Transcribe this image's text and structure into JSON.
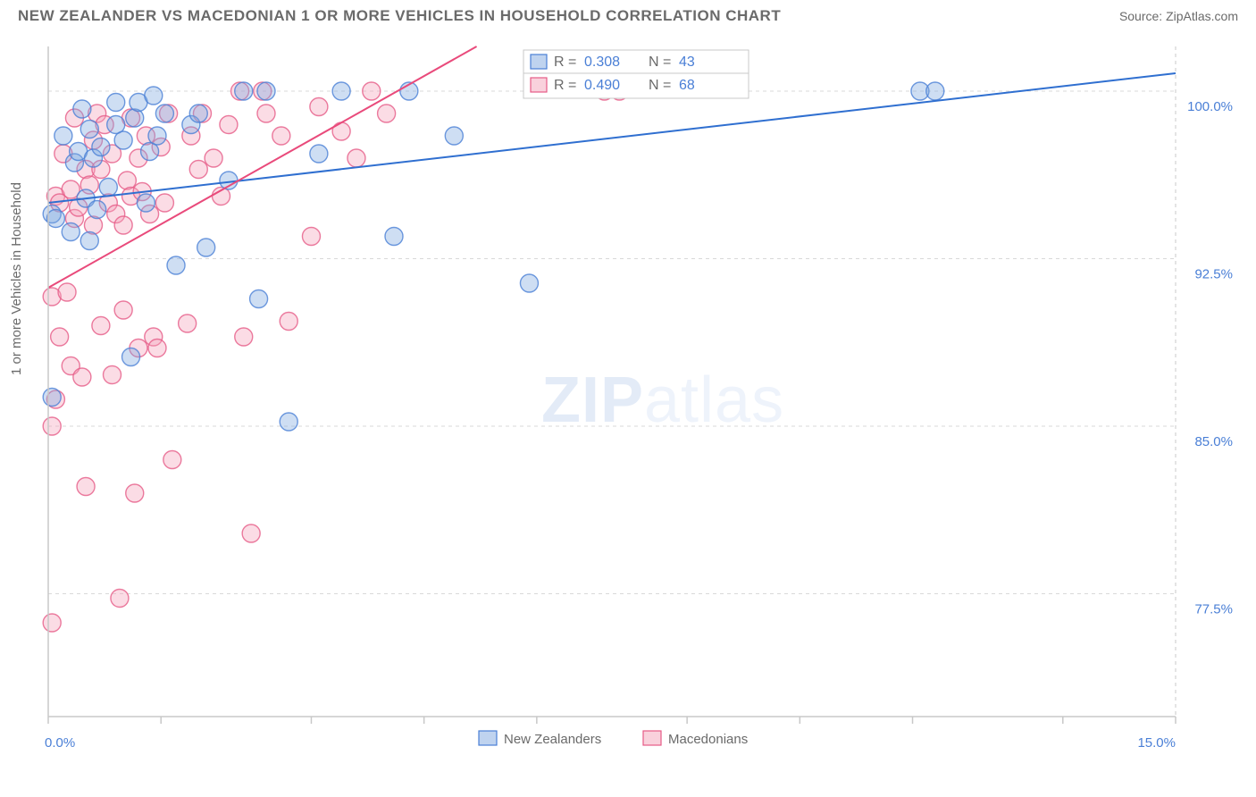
{
  "title": "NEW ZEALANDER VS MACEDONIAN 1 OR MORE VEHICLES IN HOUSEHOLD CORRELATION CHART",
  "source": "Source: ZipAtlas.com",
  "y_axis_label": "1 or more Vehicles in Household",
  "watermark_a": "ZIP",
  "watermark_b": "atlas",
  "chart": {
    "type": "scatter",
    "xlim": [
      0.0,
      15.0
    ],
    "ylim": [
      72.0,
      102.0
    ],
    "x_tick_positions": [
      0.0,
      1.5,
      3.5,
      5.0,
      6.5,
      8.5,
      10.0,
      11.5,
      13.5,
      15.0
    ],
    "x_tick_labels_shown": {
      "0.0": "0.0%",
      "15.0": "15.0%"
    },
    "y_grid": [
      77.5,
      85.0,
      92.5,
      100.0
    ],
    "y_tick_labels": [
      "77.5%",
      "85.0%",
      "92.5%",
      "100.0%"
    ],
    "background_color": "#ffffff",
    "grid_color": "#d9d9d9",
    "axis_color": "#c8c8c8",
    "series": [
      {
        "name": "New Zealanders",
        "label": "New Zealanders",
        "fill": "#7fa8e0",
        "fill_opacity": 0.38,
        "stroke": "#4a7fd6",
        "stroke_opacity": 0.8,
        "marker_r": 10,
        "trend": {
          "x1": 0.0,
          "y1": 95.0,
          "x2": 15.0,
          "y2": 100.8,
          "color": "#2f6fd0",
          "width": 2
        },
        "stat_R": "0.308",
        "stat_N": "43",
        "points": [
          [
            0.05,
            94.5
          ],
          [
            0.05,
            86.3
          ],
          [
            0.1,
            94.3
          ],
          [
            0.2,
            98.0
          ],
          [
            0.3,
            93.7
          ],
          [
            0.35,
            96.8
          ],
          [
            0.4,
            97.3
          ],
          [
            0.45,
            99.2
          ],
          [
            0.5,
            95.2
          ],
          [
            0.55,
            98.3
          ],
          [
            0.55,
            93.3
          ],
          [
            0.6,
            97.0
          ],
          [
            0.65,
            94.7
          ],
          [
            0.7,
            97.5
          ],
          [
            0.8,
            95.7
          ],
          [
            0.9,
            99.5
          ],
          [
            0.9,
            98.5
          ],
          [
            1.0,
            97.8
          ],
          [
            1.1,
            88.1
          ],
          [
            1.15,
            98.8
          ],
          [
            1.2,
            99.5
          ],
          [
            1.3,
            95.0
          ],
          [
            1.35,
            97.3
          ],
          [
            1.4,
            99.8
          ],
          [
            1.45,
            98.0
          ],
          [
            1.55,
            99.0
          ],
          [
            1.7,
            92.2
          ],
          [
            1.9,
            98.5
          ],
          [
            2.0,
            99.0
          ],
          [
            2.1,
            93.0
          ],
          [
            2.4,
            96.0
          ],
          [
            2.6,
            100.0
          ],
          [
            2.8,
            90.7
          ],
          [
            2.9,
            100.0
          ],
          [
            3.2,
            85.2
          ],
          [
            3.6,
            97.2
          ],
          [
            3.9,
            100.0
          ],
          [
            4.6,
            93.5
          ],
          [
            4.8,
            100.0
          ],
          [
            5.4,
            98.0
          ],
          [
            6.4,
            91.4
          ],
          [
            11.6,
            100.0
          ],
          [
            11.8,
            100.0
          ]
        ]
      },
      {
        "name": "Macedonians",
        "label": "Macedonians",
        "fill": "#f4a4ba",
        "fill_opacity": 0.38,
        "stroke": "#e65b87",
        "stroke_opacity": 0.8,
        "marker_r": 10,
        "trend": {
          "x1": 0.0,
          "y1": 91.2,
          "x2": 5.7,
          "y2": 102.0,
          "color": "#e94a7b",
          "width": 2
        },
        "stat_R": "0.490",
        "stat_N": "68",
        "points": [
          [
            0.05,
            90.8
          ],
          [
            0.05,
            85.0
          ],
          [
            0.05,
            76.2
          ],
          [
            0.1,
            86.2
          ],
          [
            0.1,
            95.3
          ],
          [
            0.15,
            89.0
          ],
          [
            0.15,
            95.0
          ],
          [
            0.2,
            97.2
          ],
          [
            0.25,
            91.0
          ],
          [
            0.3,
            95.6
          ],
          [
            0.3,
            87.7
          ],
          [
            0.35,
            94.3
          ],
          [
            0.35,
            98.8
          ],
          [
            0.4,
            94.8
          ],
          [
            0.45,
            87.2
          ],
          [
            0.5,
            96.5
          ],
          [
            0.5,
            82.3
          ],
          [
            0.55,
            95.8
          ],
          [
            0.6,
            94.0
          ],
          [
            0.6,
            97.8
          ],
          [
            0.65,
            99.0
          ],
          [
            0.7,
            96.5
          ],
          [
            0.7,
            89.5
          ],
          [
            0.75,
            98.5
          ],
          [
            0.8,
            95.0
          ],
          [
            0.85,
            97.2
          ],
          [
            0.85,
            87.3
          ],
          [
            0.9,
            94.5
          ],
          [
            0.95,
            77.3
          ],
          [
            1.0,
            94.0
          ],
          [
            1.0,
            90.2
          ],
          [
            1.05,
            96.0
          ],
          [
            1.1,
            98.8
          ],
          [
            1.1,
            95.3
          ],
          [
            1.15,
            82.0
          ],
          [
            1.2,
            97.0
          ],
          [
            1.2,
            88.5
          ],
          [
            1.25,
            95.5
          ],
          [
            1.3,
            98.0
          ],
          [
            1.35,
            94.5
          ],
          [
            1.4,
            89.0
          ],
          [
            1.45,
            88.5
          ],
          [
            1.5,
            97.5
          ],
          [
            1.55,
            95.0
          ],
          [
            1.6,
            99.0
          ],
          [
            1.65,
            83.5
          ],
          [
            1.85,
            89.6
          ],
          [
            1.9,
            98.0
          ],
          [
            2.0,
            96.5
          ],
          [
            2.05,
            99.0
          ],
          [
            2.2,
            97.0
          ],
          [
            2.3,
            95.3
          ],
          [
            2.4,
            98.5
          ],
          [
            2.55,
            100.0
          ],
          [
            2.6,
            89.0
          ],
          [
            2.7,
            80.2
          ],
          [
            2.85,
            100.0
          ],
          [
            2.9,
            99.0
          ],
          [
            3.1,
            98.0
          ],
          [
            3.2,
            89.7
          ],
          [
            3.5,
            93.5
          ],
          [
            3.6,
            99.3
          ],
          [
            3.9,
            98.2
          ],
          [
            4.1,
            97.0
          ],
          [
            4.3,
            100.0
          ],
          [
            4.5,
            99.0
          ],
          [
            7.4,
            100.0
          ],
          [
            7.6,
            100.0
          ]
        ]
      }
    ]
  },
  "legend": {
    "items": [
      "New Zealanders",
      "Macedonians"
    ]
  },
  "statbox": {
    "R_label": "R =",
    "N_label": "N ="
  }
}
